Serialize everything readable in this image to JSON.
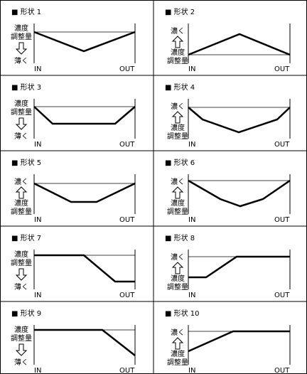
{
  "panels": [
    {
      "title": "■ 形状 1",
      "arrow": "down",
      "label": [
        "濃度",
        "調整量"
      ],
      "end_label": "薄く",
      "in": "IN",
      "out": "OUT"
    },
    {
      "title": "■ 形状 2",
      "arrow": "up",
      "label": [
        "濃度",
        "調整量"
      ],
      "end_label": "濃く",
      "in": "IN",
      "out": "OUT"
    },
    {
      "title": "■ 形状 3",
      "arrow": "down",
      "label": [
        "濃度",
        "調整量"
      ],
      "end_label": "薄く",
      "in": "IN",
      "out": "OUT"
    },
    {
      "title": "■ 形状 4",
      "arrow": "up",
      "label": [
        "濃度",
        "調整量"
      ],
      "end_label": "濃く",
      "in": "IN",
      "out": "OUT"
    },
    {
      "title": "■ 形状 5",
      "arrow": "up",
      "label": [
        "濃度",
        "調整量"
      ],
      "end_label": "濃く",
      "in": "IN",
      "out": "OUT"
    },
    {
      "title": "■ 形状 6",
      "arrow": "up",
      "label": [
        "濃度",
        "調整量"
      ],
      "end_label": "濃く",
      "in": "IN",
      "out": "OUT"
    },
    {
      "title": "■ 形状 7",
      "arrow": "down",
      "label": [
        "濃度",
        "調整量"
      ],
      "end_label": "薄く",
      "in": "IN",
      "out": "OUT"
    },
    {
      "title": "■ 形状 8",
      "arrow": "up",
      "label": [
        "濃度",
        "調整量"
      ],
      "end_label": "濃く",
      "in": "IN",
      "out": "OUT"
    },
    {
      "title": "■ 形状 9",
      "arrow": "down",
      "label": [
        "濃度",
        "調整量"
      ],
      "end_label": "薄く",
      "in": "IN",
      "out": "OUT"
    },
    {
      "title": "■ 形状 10",
      "arrow": "up",
      "label": [
        "濃度",
        "調整量"
      ],
      "end_label": "濃く",
      "in": "IN",
      "out": "OUT"
    }
  ]
}
